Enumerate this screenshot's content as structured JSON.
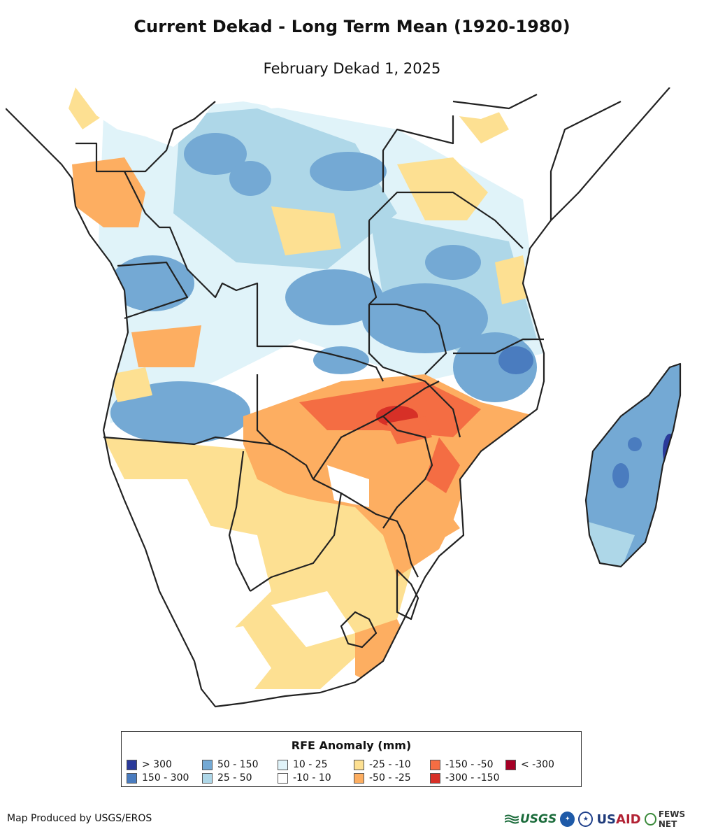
{
  "title": "Current Dekad - Long Term Mean (1920-1980)",
  "subtitle": "February Dekad 1, 2025",
  "legend": {
    "title": "RFE Anomaly (mm)",
    "items": [
      {
        "label": "> 300",
        "color": "#2b3a9a"
      },
      {
        "label": "150 - 300",
        "color": "#4a7cbf"
      },
      {
        "label": "50 - 150",
        "color": "#74a9d4"
      },
      {
        "label": "25 - 50",
        "color": "#aed7e8"
      },
      {
        "label": "10 - 25",
        "color": "#e0f3f9"
      },
      {
        "label": "-10 - 10",
        "color": "#ffffff"
      },
      {
        "label": "-25 - -10",
        "color": "#fde092"
      },
      {
        "label": "-50 - -25",
        "color": "#fdae61"
      },
      {
        "label": "-150 - -50",
        "color": "#f46d43"
      },
      {
        "label": "-300 - -150",
        "color": "#d73027"
      },
      {
        "label": "< -300",
        "color": "#a50026"
      }
    ]
  },
  "credit": "Map Produced by USGS/EROS",
  "logos": {
    "usgs": "USGS",
    "usaid_us": "US",
    "usaid_aid": "AID",
    "fews": "FEWS NET"
  }
}
